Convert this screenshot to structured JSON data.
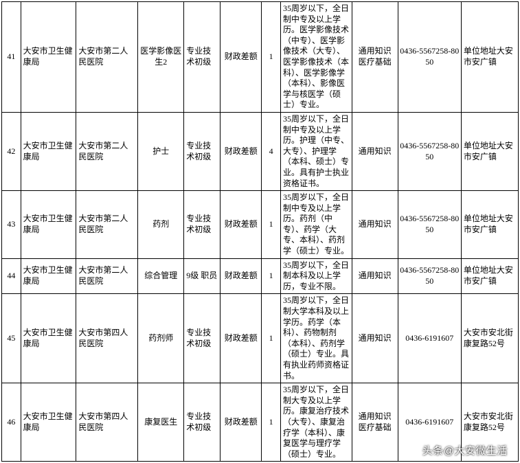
{
  "table": {
    "rows": [
      {
        "idx": "41",
        "dept": "大安市卫生健康局",
        "unit": "大安市第二人民医院",
        "pos": "医学影像医生2",
        "level": "专业技术初级",
        "fund": "财政差额",
        "count": "1",
        "req": "35周岁以下，全日制中专及以上学历。医学影像技术（中专）、医学影像技术（大专）、医学影像技术（本科）、医学影像学（本科）、影像医学与核医学（硕士）专业。",
        "subj": "通用知识 医疗基础",
        "phone": "0436-5567258-8050",
        "addr": "单位地址大安市安广镇"
      },
      {
        "idx": "42",
        "dept": "大安市卫生健康局",
        "unit": "大安市第二人民医院",
        "pos": "护士",
        "level": "专业技术初级",
        "fund": "财政差额",
        "count": "4",
        "req": "35周岁以下，全日制中专及以上学历。护理（中专、大专）、护理学（本科、硕士）专业。具有护士执业资格证书。",
        "subj": "通用知识",
        "phone": "0436-5567258-8050",
        "addr": "单位地址大安市安广镇"
      },
      {
        "idx": "43",
        "dept": "大安市卫生健康局",
        "unit": "大安市第二人民医院",
        "pos": "药剂",
        "level": "专业技术初级",
        "fund": "财政差额",
        "count": "1",
        "req": "35周岁以下，全日制中专及以上学历。药剂（中专）、药学（大专、本科）、药剂学（硕士）专业。",
        "subj": "通用知识",
        "phone": "0436-5567258-8050",
        "addr": "单位地址大安市安广镇"
      },
      {
        "idx": "44",
        "dept": "大安市卫生健康局",
        "unit": "大安市第二人民医院",
        "pos": "综合管理",
        "level": "9级 职员",
        "fund": "财政差额",
        "count": "1",
        "req": "35周岁以下，全日制本科及以上学历，专业不限。",
        "subj": "通用知识",
        "phone": "0436-5567258-8050",
        "addr": "单位地址大安市安广镇"
      },
      {
        "idx": "45",
        "dept": "大安市卫生健康局",
        "unit": "大安市第四人民医院",
        "pos": "药剂师",
        "level": "专业技术初级",
        "fund": "财政差额",
        "count": "1",
        "req": "35周岁以下，全日制大学本科及以上学历。药学（本科）、药物制剂（本科）、药剂学（硕士）专业。具有执业药师资格证书。",
        "subj": "通用知识",
        "phone": "0436-6191607",
        "addr": "大安市安北街康复路52号"
      },
      {
        "idx": "46",
        "dept": "大安市卫生健康局",
        "unit": "大安市第四人民医院",
        "pos": "康复医生",
        "level": "专业技术初级",
        "fund": "财政差额",
        "count": "1",
        "req": "35周岁以下，全日制大专及以上学历。康复治疗技术（大专）、康复治疗学（本科）、康复医学与理疗学（硕士）专业。",
        "subj": "通用知识 医疗基础",
        "phone": "0436-6191607",
        "addr": "大安市安北街康复路52号"
      }
    ]
  },
  "watermark": "头条@大安微生活"
}
